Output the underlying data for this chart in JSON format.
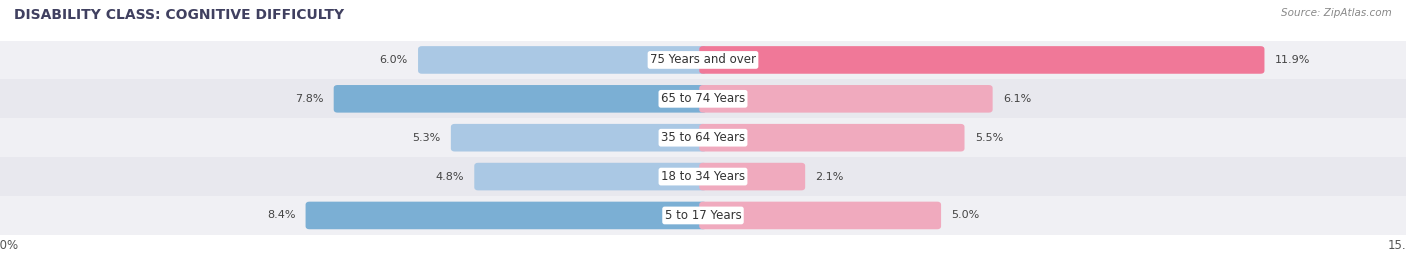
{
  "title": "DISABILITY CLASS: COGNITIVE DIFFICULTY",
  "source": "Source: ZipAtlas.com",
  "categories": [
    "5 to 17 Years",
    "18 to 34 Years",
    "35 to 64 Years",
    "65 to 74 Years",
    "75 Years and over"
  ],
  "male_values": [
    8.4,
    4.8,
    5.3,
    7.8,
    6.0
  ],
  "female_values": [
    5.0,
    2.1,
    5.5,
    6.1,
    11.9
  ],
  "male_color_strong": "#7bafd4",
  "male_color_light": "#aac8e4",
  "female_color_strong": "#f07898",
  "female_color_light": "#f0aabe",
  "x_max": 15.0,
  "bg_color": "#ffffff",
  "row_colors": [
    "#f0f0f4",
    "#e8e8ee"
  ],
  "title_fontsize": 10,
  "label_fontsize": 8.5,
  "tick_fontsize": 8.5,
  "legend_fontsize": 8.5,
  "value_fontsize": 8.0
}
